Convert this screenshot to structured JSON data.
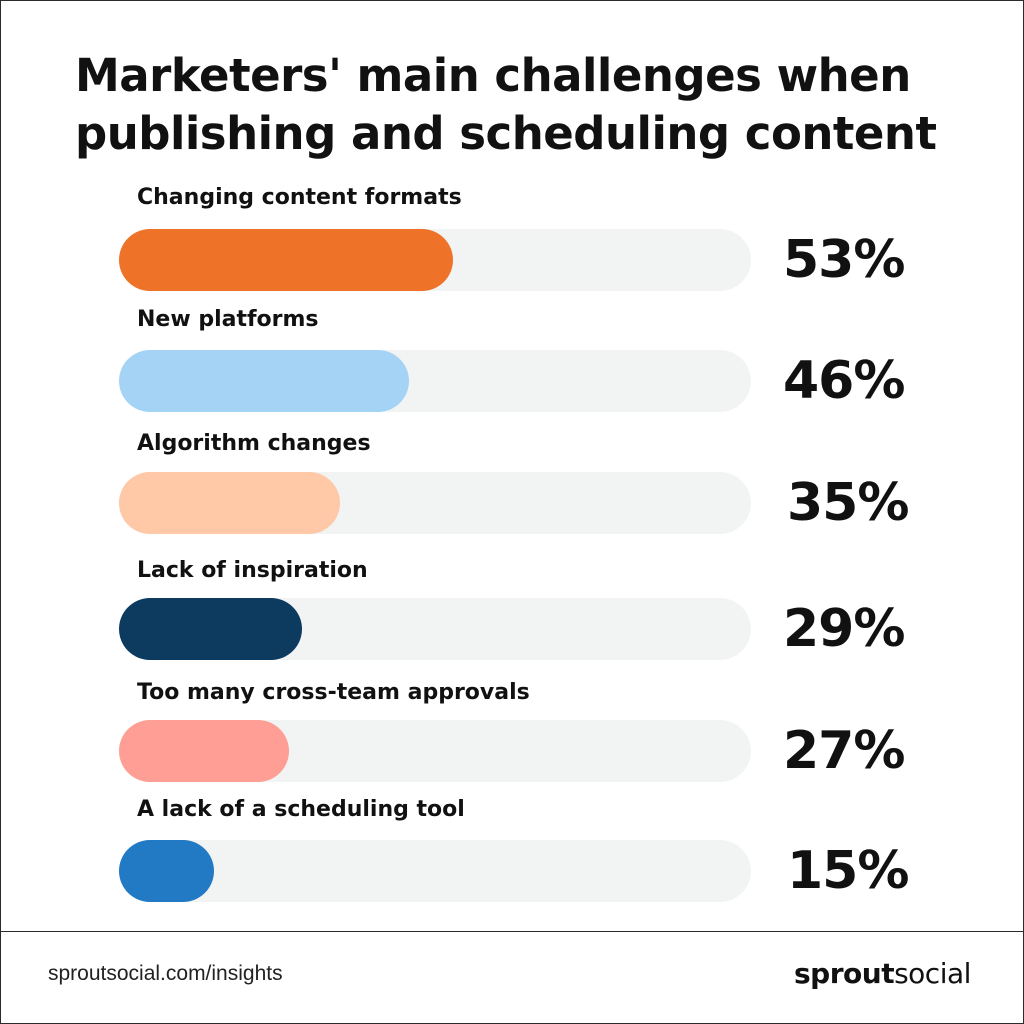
{
  "chart_data": {
    "type": "bar",
    "title": "Marketers' main challenges when publishing and scheduling content",
    "categories": [
      "Changing content formats",
      "New platforms",
      "Algorithm changes",
      "Lack of inspiration",
      "Too many cross-team approvals",
      "A lack of a scheduling tool"
    ],
    "values": [
      53,
      46,
      35,
      29,
      27,
      15
    ],
    "value_labels": [
      "53%",
      "46%",
      "35%",
      "29%",
      "27%",
      "15%"
    ],
    "colors": [
      "#ee7228",
      "#a5d3f6",
      "#ffc8a7",
      "#0d3a5f",
      "#ff9e95",
      "#2279c4"
    ],
    "track_color": "#f2f3f3",
    "ylim": [
      0,
      100
    ]
  },
  "footer": {
    "url": "sproutsocial.com/insights",
    "brand_bold": "sprout",
    "brand_light": "social"
  }
}
